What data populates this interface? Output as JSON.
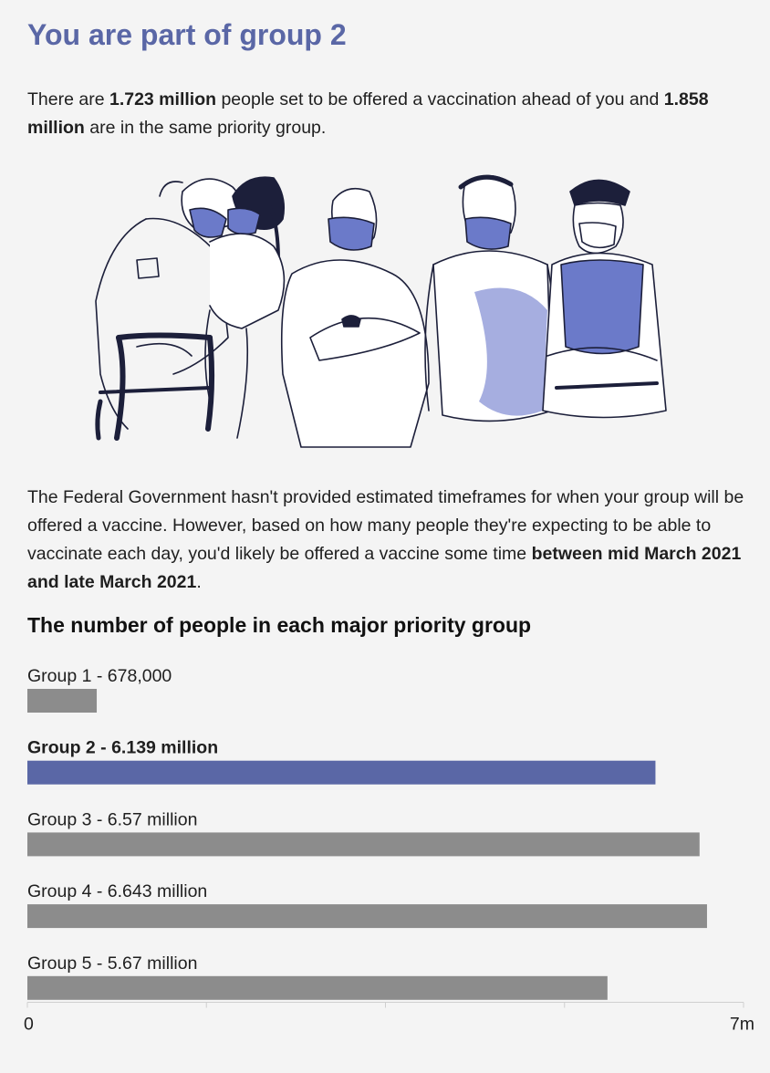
{
  "header": {
    "title": "You are part of group 2"
  },
  "intro": {
    "pre": "There are ",
    "ahead": "1.723 million",
    "mid": " people set to be offered a vaccination ahead of you and ",
    "same": "1.858 million",
    "post": " are in the same priority group."
  },
  "timeframe": {
    "pre": "The Federal Government hasn't provided estimated timeframes for when your group will be offered a vaccine. However, based on how many people they're expecting to be able to vaccinate each day, you'd likely be offered a vaccine some time ",
    "range": "between mid March 2021 and late March 2021",
    "post": "."
  },
  "colors": {
    "accent": "#5a67a6",
    "bar": "#8c8c8c",
    "text": "#1f1f1f",
    "background": "#f4f4f4"
  },
  "chart_data": {
    "type": "bar",
    "orientation": "horizontal",
    "title": "The number of people in each major priority group",
    "categories": [
      "Group 1",
      "Group 2",
      "Group 3",
      "Group 4",
      "Group 5"
    ],
    "labels": [
      "Group 1 - 678,000",
      "Group 2 - 6.139 million",
      "Group 3 - 6.57 million",
      "Group 4 - 6.643 million",
      "Group 5 - 5.67 million"
    ],
    "values": [
      678000,
      6139000,
      6570000,
      6643000,
      5670000
    ],
    "highlight": "Group 2",
    "xlim": [
      0,
      7000000
    ],
    "x_tick_labels": [
      "0",
      "7m"
    ],
    "x_tick_values": [
      0,
      1750000,
      3500000,
      5250000,
      7000000
    ],
    "grid": false
  }
}
